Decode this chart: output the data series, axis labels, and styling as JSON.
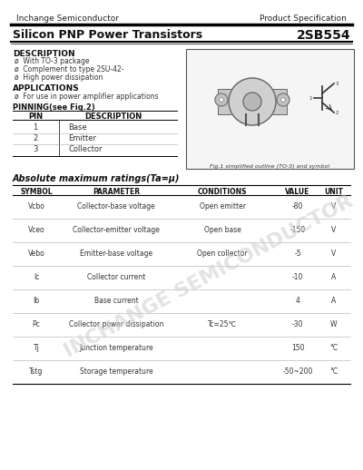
{
  "header_company": "Inchange Semiconductor",
  "header_spec": "Product Specification",
  "title_left": "Silicon PNP Power Transistors",
  "title_right": "2SB554",
  "desc_title": "DESCRIPTION",
  "desc_items": [
    "ø  With TO-3 package",
    "ø  Complement to type 2SU-42-",
    "ø  High power dissipation"
  ],
  "app_title": "APPLICATIONS",
  "app_items": [
    "ø  For use in power amplifier applications"
  ],
  "pin_title": "PINNING(see Fig.2)",
  "pin_headers": [
    "PIN",
    "DESCRIPTION"
  ],
  "pin_rows": [
    [
      "1",
      "Base"
    ],
    [
      "2",
      "Emitter"
    ],
    [
      "3",
      "Collector"
    ]
  ],
  "fig_caption": "Fig.1 simplified outline (TO-3) and symbol",
  "abs_title": "Absolute maximum ratings(Ta=µ)",
  "abs_headers": [
    "SYMBOL",
    "PARAMETER",
    "CONDITIONS",
    "VALUE",
    "UNIT"
  ],
  "abs_rows": [
    [
      "Vcbo",
      "Collector-base voltage",
      "Open emitter",
      "-80",
      "V"
    ],
    [
      "Vceo",
      "Collector-emitter voltage",
      "Open base",
      "-150",
      "V"
    ],
    [
      "Vebo",
      "Emitter-base voltage",
      "Open collector",
      "-5",
      "V"
    ],
    [
      "Ic",
      "Collector current",
      "",
      "-10",
      "A"
    ],
    [
      "Ib",
      "Base current",
      "",
      "4",
      "A"
    ],
    [
      "Pc",
      "Collector power dissipation",
      "Tc=25℃",
      "-30",
      "W"
    ],
    [
      "Tj",
      "Junction temperature",
      "",
      "150",
      "°C"
    ],
    [
      "Tstg",
      "Storage temperature",
      "",
      "-50~200",
      "°C"
    ]
  ],
  "watermark": "INCHANGE SEMICONDUCTOR",
  "bg_color": "#ffffff",
  "text_color": "#000000",
  "line_color": "#000000"
}
